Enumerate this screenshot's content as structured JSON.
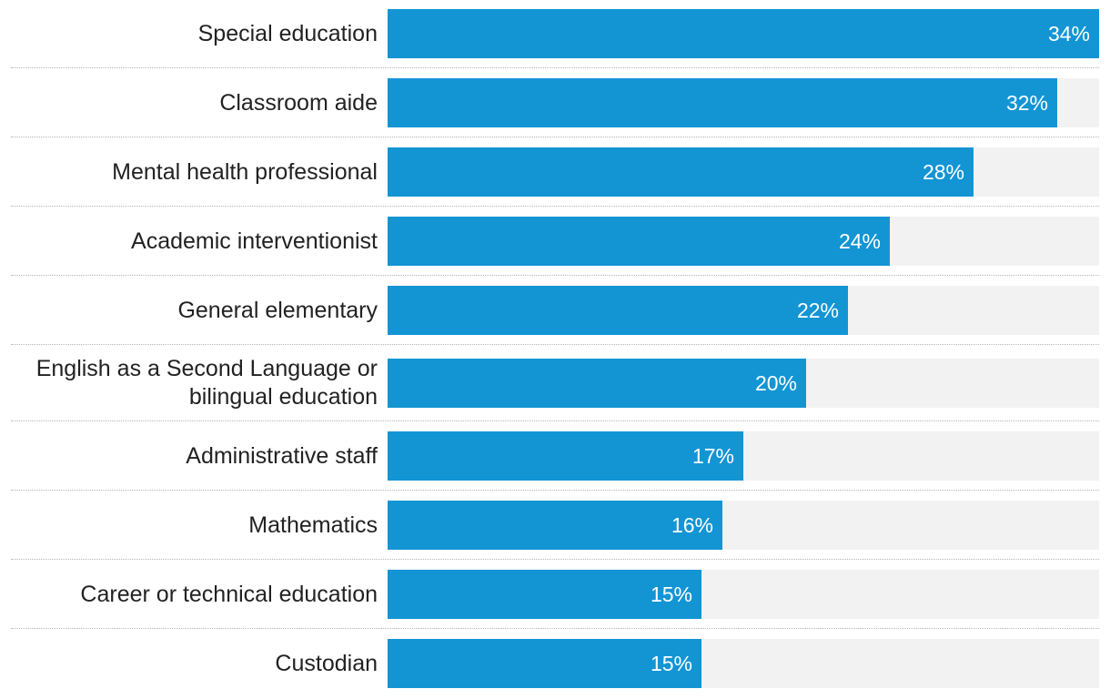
{
  "colors": {
    "bar": "#1395d4",
    "track": "#f2f2f2",
    "label_text": "#222222",
    "value_text": "#ffffff",
    "divider": "#b5b5b5"
  },
  "chart_data": {
    "type": "bar",
    "orientation": "horizontal",
    "title": "",
    "xlabel": "",
    "ylabel": "",
    "xlim": [
      0,
      34
    ],
    "grid": false,
    "value_suffix": "%",
    "categories": [
      "Special education",
      "Classroom aide",
      "Mental health professional",
      "Academic interventionist",
      "General elementary",
      "English as a Second Language or\nbilingual education",
      "Administrative staff",
      "Mathematics",
      "Career or technical education",
      "Custodian"
    ],
    "values": [
      34,
      32,
      28,
      24,
      22,
      20,
      17,
      16,
      15,
      15
    ],
    "value_labels": [
      "34%",
      "32%",
      "28%",
      "24%",
      "22%",
      "20%",
      "17%",
      "16%",
      "15%",
      "15%"
    ]
  }
}
